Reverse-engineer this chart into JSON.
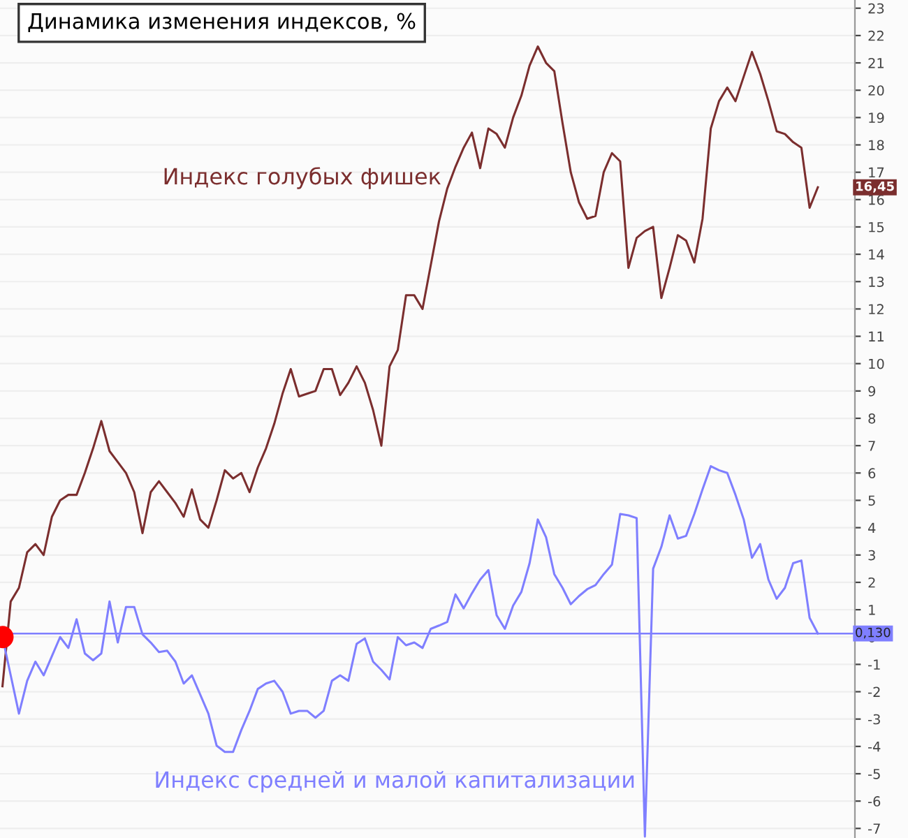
{
  "chart_data": {
    "type": "line",
    "title": "Динамика изменения индексов, %",
    "categories": [
      null,
      null,
      null,
      null,
      null,
      null,
      null,
      null,
      null,
      null,
      null,
      null,
      null,
      null,
      null,
      null,
      null,
      null,
      null,
      null,
      null,
      null,
      null,
      null,
      null,
      null,
      null,
      null,
      null,
      null,
      null,
      null,
      null,
      null,
      null,
      null,
      null,
      null,
      null,
      null,
      null,
      null,
      null,
      null,
      null,
      null,
      null,
      null,
      null,
      null,
      null,
      null,
      null,
      null,
      null,
      null,
      null,
      null,
      null,
      null,
      null,
      null,
      null,
      null,
      null,
      null,
      null,
      null,
      null,
      null,
      null,
      null,
      null,
      null,
      null,
      null,
      null,
      null,
      null,
      null,
      null,
      null,
      null,
      null,
      null,
      null,
      null,
      null,
      null,
      null,
      null,
      null,
      null,
      null,
      null,
      null,
      null,
      null,
      null,
      null
    ],
    "series": [
      {
        "name": "Индекс голубых фишек",
        "color": "#7b2e2e",
        "values": [
          -1.8,
          1.3,
          1.8,
          3.1,
          3.4,
          3.0,
          4.4,
          5.0,
          5.2,
          5.2,
          6.0,
          6.9,
          7.9,
          6.8,
          6.4,
          6.0,
          5.3,
          3.8,
          5.3,
          5.7,
          5.3,
          4.9,
          4.4,
          5.4,
          4.3,
          4.0,
          5.0,
          6.1,
          5.8,
          6.0,
          5.3,
          6.2,
          6.9,
          7.8,
          8.9,
          9.8,
          8.8,
          8.9,
          9.0,
          9.8,
          9.8,
          8.85,
          9.3,
          9.9,
          9.3,
          8.3,
          7.0,
          9.9,
          10.5,
          12.5,
          12.5,
          12.0,
          13.6,
          15.2,
          16.4,
          17.2,
          17.9,
          18.45,
          17.15,
          18.6,
          18.4,
          17.9,
          19.0,
          19.8,
          20.9,
          21.6,
          21.0,
          20.7,
          18.8,
          17.0,
          15.9,
          15.3,
          15.4,
          17.0,
          17.7,
          17.4,
          13.5,
          14.6,
          14.85,
          15.0,
          12.4,
          13.5,
          14.7,
          14.5,
          13.7,
          15.3,
          18.6,
          19.6,
          20.1,
          19.6,
          20.5,
          21.4,
          20.6,
          19.6,
          18.5,
          18.4,
          18.1,
          17.9,
          15.7,
          16.45
        ]
      },
      {
        "name": "Индекс средней и малой капитализации",
        "color": "#7f7fff",
        "values": [
          0,
          -1.4,
          -2.8,
          -1.6,
          -0.9,
          -1.4,
          -0.7,
          0.0,
          -0.4,
          0.65,
          -0.6,
          -0.85,
          -0.6,
          1.3,
          -0.2,
          1.1,
          1.1,
          0.1,
          -0.2,
          -0.55,
          -0.5,
          -0.9,
          -1.7,
          -1.4,
          -2.1,
          -2.8,
          -3.97,
          -4.2,
          -4.2,
          -3.4,
          -2.7,
          -1.9,
          -1.7,
          -1.6,
          -2.0,
          -2.8,
          -2.7,
          -2.7,
          -2.95,
          -2.7,
          -1.6,
          -1.4,
          -1.6,
          -0.25,
          -0.05,
          -0.9,
          -1.2,
          -1.55,
          0.0,
          -0.3,
          -0.2,
          -0.4,
          0.3,
          0.42,
          0.55,
          1.56,
          1.05,
          1.6,
          2.1,
          2.45,
          0.8,
          0.3,
          1.15,
          1.65,
          2.7,
          4.3,
          3.65,
          2.3,
          1.8,
          1.2,
          1.5,
          1.75,
          1.9,
          2.3,
          2.65,
          4.5,
          4.45,
          4.35,
          -7.3,
          2.5,
          3.3,
          4.45,
          3.6,
          3.7,
          4.5,
          5.4,
          6.25,
          6.1,
          6.0,
          5.2,
          4.3,
          2.9,
          3.4,
          2.1,
          1.4,
          1.8,
          2.7,
          2.8,
          0.7,
          0.13
        ]
      },
      {
        "type": "scatter",
        "color": "#ff0000",
        "marker": "circle",
        "values": [
          0,
          null,
          null,
          null,
          null,
          null,
          null,
          null,
          null,
          null,
          null,
          null,
          null,
          null,
          null,
          null,
          null,
          null,
          null,
          null,
          null,
          null,
          null,
          null,
          null,
          null,
          null,
          null,
          null,
          null,
          null,
          null,
          null,
          null,
          null,
          null,
          null,
          null,
          null,
          null,
          null,
          null,
          null,
          null,
          null,
          null,
          null,
          null,
          null,
          null,
          null,
          null,
          null,
          null,
          null,
          null,
          null,
          null,
          null,
          null,
          null,
          null,
          null,
          null,
          null,
          null,
          null,
          null,
          null,
          null,
          null,
          null,
          null,
          null,
          null,
          null,
          null,
          null,
          null,
          null,
          null,
          null,
          null,
          null,
          null,
          null,
          null,
          null,
          null,
          null,
          null,
          null,
          null,
          null,
          null,
          null,
          null,
          null,
          null,
          null
        ]
      }
    ],
    "ylim": [
      -7.35,
      23.3
    ],
    "yticks": [
      -7,
      -6,
      -5,
      -4,
      -3,
      -2,
      -1,
      0,
      1,
      2,
      3,
      4,
      5,
      6,
      7,
      8,
      9,
      10,
      11,
      12,
      13,
      14,
      15,
      16,
      17,
      18,
      19,
      20,
      21,
      22,
      23
    ],
    "tick_labels": "y",
    "grid": "y",
    "ref_lines": [
      {
        "axis": "y",
        "value": 0.13,
        "label": "0,130",
        "color": "#7f7fff"
      }
    ],
    "annotations": [
      "16,45"
    ],
    "legend": false
  }
}
